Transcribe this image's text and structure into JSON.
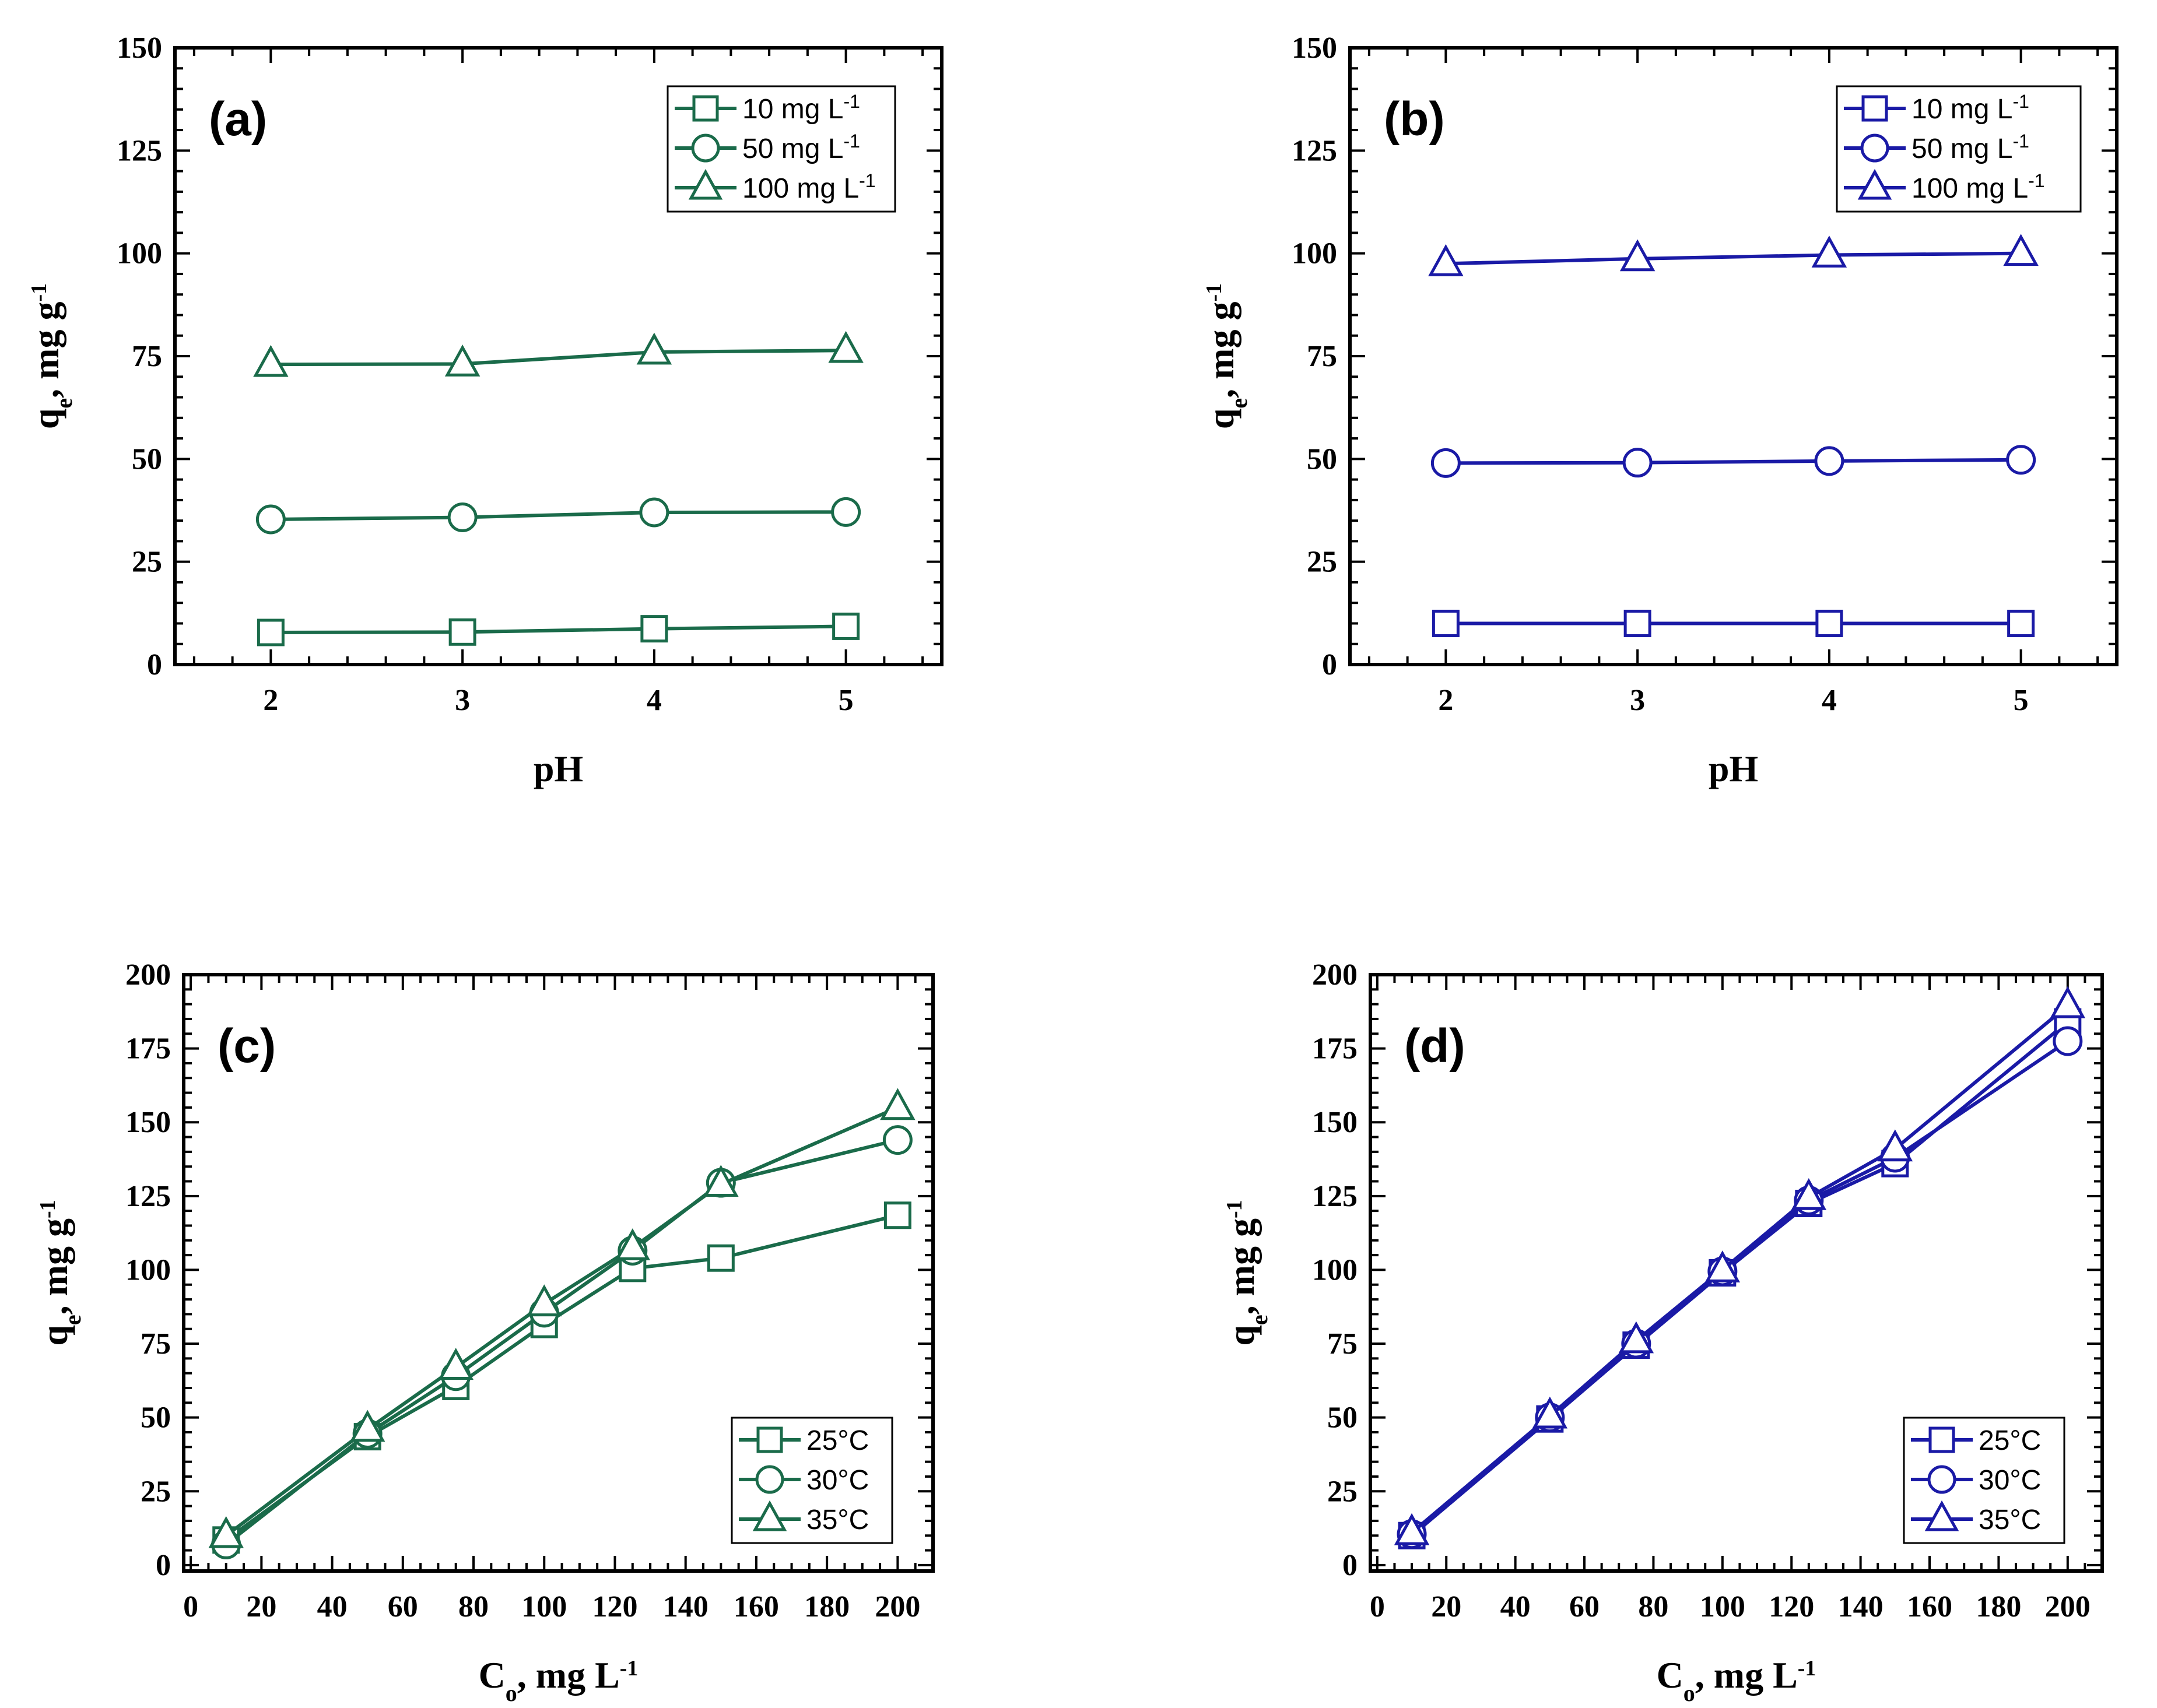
{
  "chart_data": [
    {
      "type": "line",
      "panel_label": "(a)",
      "color": "#1a6b4a",
      "x": [
        2,
        3,
        4,
        5
      ],
      "xlabel": "pH",
      "ylabel": "q_e, mg g^-1",
      "ylabel_parts": {
        "main": "q",
        "sub": "e",
        "unit": ", mg g",
        "sup": "-1"
      },
      "xlim": [
        1.5,
        5.5
      ],
      "ylim": [
        0,
        150
      ],
      "xticks": [
        2,
        3,
        4,
        5
      ],
      "yticks": [
        0,
        25,
        50,
        75,
        100,
        125,
        150
      ],
      "legend_position": "top-right",
      "series": [
        {
          "name": "10 mg L-1",
          "name_main": "10 mg L",
          "name_sup": "-1",
          "marker": "square",
          "values": [
            7.8,
            7.9,
            8.7,
            9.3
          ]
        },
        {
          "name": "50 mg L-1",
          "name_main": "50 mg L",
          "name_sup": "-1",
          "marker": "circle",
          "values": [
            35.3,
            35.8,
            37.0,
            37.1
          ]
        },
        {
          "name": "100 mg L-1",
          "name_main": "100 mg L",
          "name_sup": "-1",
          "marker": "triangle",
          "values": [
            73.0,
            73.1,
            76.0,
            76.4
          ]
        }
      ]
    },
    {
      "type": "line",
      "panel_label": "(b)",
      "color": "#1a1aa6",
      "x": [
        2,
        3,
        4,
        5
      ],
      "xlabel": "pH",
      "ylabel": "q_e, mg g^-1",
      "ylabel_parts": {
        "main": "q",
        "sub": "e",
        "unit": ", mg g",
        "sup": "-1"
      },
      "xlim": [
        1.5,
        5.5
      ],
      "ylim": [
        0,
        150
      ],
      "xticks": [
        2,
        3,
        4,
        5
      ],
      "yticks": [
        0,
        25,
        50,
        75,
        100,
        125,
        150
      ],
      "legend_position": "top-right",
      "series": [
        {
          "name": "10 mg L-1",
          "name_main": "10 mg L",
          "name_sup": "-1",
          "marker": "square",
          "values": [
            10.0,
            10.0,
            10.0,
            10.0
          ]
        },
        {
          "name": "50 mg L-1",
          "name_main": "50 mg L",
          "name_sup": "-1",
          "marker": "circle",
          "values": [
            49.0,
            49.1,
            49.5,
            49.8
          ]
        },
        {
          "name": "100 mg L-1",
          "name_main": "100 mg L",
          "name_sup": "-1",
          "marker": "triangle",
          "values": [
            97.5,
            98.7,
            99.6,
            100.0
          ]
        }
      ]
    },
    {
      "type": "line",
      "panel_label": "(c)",
      "color": "#1a6b4a",
      "x": [
        10,
        50,
        75,
        100,
        125,
        150,
        200
      ],
      "xlabel": "C_o, mg L^-1",
      "xlabel_parts": {
        "main": "C",
        "sub": "o",
        "unit": ", mg L",
        "sup": "-1"
      },
      "ylabel": "q_e, mg g^-1",
      "ylabel_parts": {
        "main": "q",
        "sub": "e",
        "unit": ", mg g",
        "sup": "-1"
      },
      "xlim": [
        -2,
        210
      ],
      "ylim": [
        -2,
        200
      ],
      "xticks": [
        0,
        20,
        40,
        60,
        80,
        100,
        120,
        140,
        160,
        180,
        200
      ],
      "yticks": [
        0,
        25,
        50,
        75,
        100,
        125,
        150,
        175,
        200
      ],
      "legend_position": "bottom-right",
      "series": [
        {
          "name": "25°C",
          "marker": "square",
          "values": [
            8.5,
            43.5,
            60.5,
            81.5,
            100.5,
            104.0,
            118.5
          ]
        },
        {
          "name": "30°C",
          "marker": "circle",
          "values": [
            7.0,
            44.5,
            64.0,
            85.5,
            106.5,
            129.5,
            144.0
          ]
        },
        {
          "name": "35°C",
          "marker": "triangle",
          "values": [
            10.0,
            46.0,
            67.0,
            88.5,
            107.5,
            129.0,
            155.0
          ]
        }
      ]
    },
    {
      "type": "line",
      "panel_label": "(d)",
      "color": "#1a1aa6",
      "x": [
        10,
        50,
        75,
        100,
        125,
        150,
        200
      ],
      "xlabel": "C_o, mg L^-1",
      "xlabel_parts": {
        "main": "C",
        "sub": "o",
        "unit": ", mg L",
        "sup": "-1"
      },
      "ylabel": "q_e, mg g^-1",
      "ylabel_parts": {
        "main": "q",
        "sub": "e",
        "unit": ", mg g",
        "sup": "-1"
      },
      "xlim": [
        -2,
        210
      ],
      "ylim": [
        -2,
        200
      ],
      "xticks": [
        0,
        20,
        40,
        60,
        80,
        100,
        120,
        140,
        160,
        180,
        200
      ],
      "yticks": [
        0,
        25,
        50,
        75,
        100,
        125,
        150,
        175,
        200
      ],
      "legend_position": "bottom-right",
      "series": [
        {
          "name": "25°C",
          "marker": "square",
          "values": [
            10.0,
            49.5,
            74.5,
            99.0,
            122.5,
            136.0,
            184.0
          ]
        },
        {
          "name": "30°C",
          "marker": "circle",
          "values": [
            10.5,
            50.0,
            75.0,
            99.5,
            123.5,
            138.0,
            177.5
          ]
        },
        {
          "name": "35°C",
          "marker": "triangle",
          "values": [
            11.0,
            50.5,
            76.0,
            100.0,
            124.5,
            141.0,
            189.5
          ]
        }
      ]
    }
  ]
}
